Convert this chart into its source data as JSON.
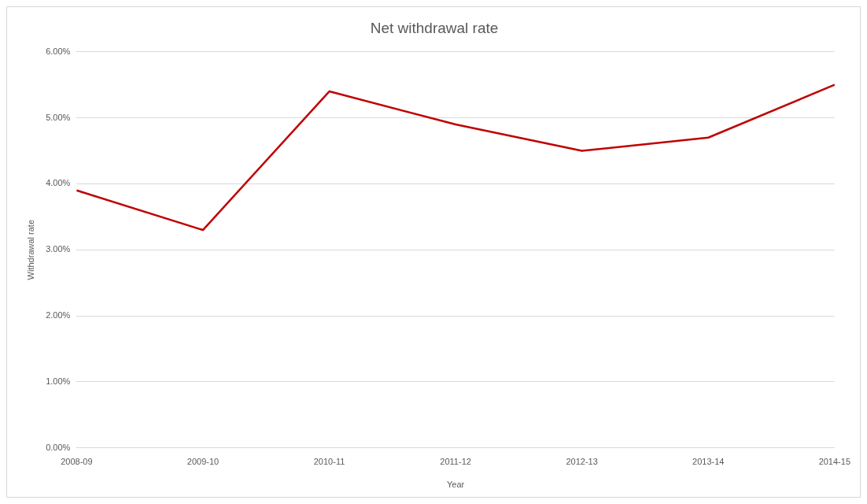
{
  "chart_data": {
    "type": "line",
    "title": "Net withdrawal rate",
    "xlabel": "Year",
    "ylabel": "Withdrawal rate",
    "categories": [
      "2008-09",
      "2009-10",
      "2010-11",
      "2011-12",
      "2012-13",
      "2013-14",
      "2014-15"
    ],
    "series": [
      {
        "color": "#c00000",
        "values": [
          3.9,
          3.3,
          5.4,
          4.9,
          4.5,
          4.7,
          5.5
        ]
      }
    ],
    "ylim": [
      0,
      6
    ],
    "yticks": [
      {
        "value": 0,
        "label": "0.00%"
      },
      {
        "value": 1,
        "label": "1.00%"
      },
      {
        "value": 2,
        "label": "2.00%"
      },
      {
        "value": 3,
        "label": "3.00%"
      },
      {
        "value": 4,
        "label": "4.00%"
      },
      {
        "value": 5,
        "label": "5.00%"
      },
      {
        "value": 6,
        "label": "6.00%"
      }
    ],
    "grid": "y",
    "legend": false,
    "marker": "none",
    "line_style": "solid"
  }
}
